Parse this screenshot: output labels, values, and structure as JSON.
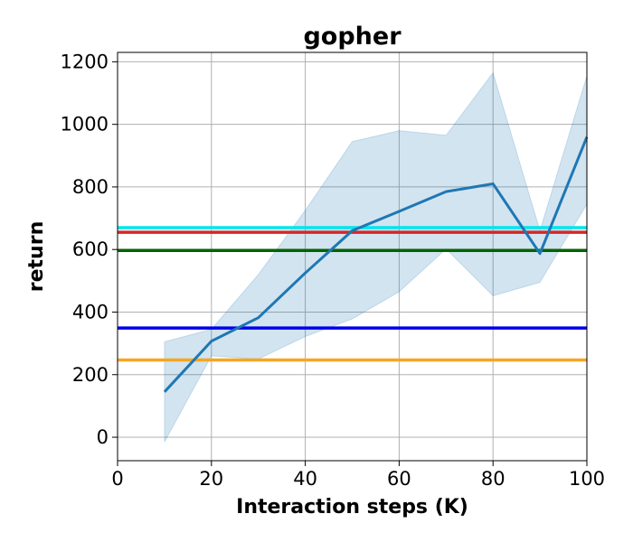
{
  "chart_data": {
    "type": "line",
    "title": "gopher",
    "xlabel": "Interaction steps (K)",
    "ylabel": "return",
    "xlim": [
      0,
      100
    ],
    "ylim": [
      -75,
      1230
    ],
    "x_ticks": [
      0,
      20,
      40,
      60,
      80,
      100
    ],
    "y_ticks": [
      0,
      200,
      400,
      600,
      800,
      1000,
      1200
    ],
    "grid": true,
    "x": [
      10,
      20,
      30,
      40,
      50,
      60,
      70,
      80,
      90,
      100
    ],
    "series": [
      {
        "values": [
          145,
          307,
          382,
          525,
          660,
          722,
          785,
          810,
          587,
          960
        ],
        "band_upper": [
          305,
          345,
          520,
          725,
          945,
          980,
          965,
          1165,
          660,
          1155
        ],
        "band_lower": [
          -15,
          260,
          250,
          322,
          378,
          465,
          602,
          452,
          495,
          745
        ],
        "color": "#1f77b4",
        "band_color": "#1f77b4"
      }
    ],
    "reference_lines": [
      {
        "value": 670,
        "color": "#00e5ee"
      },
      {
        "value": 655,
        "color": "#d62728"
      },
      {
        "value": 597,
        "color": "#006400"
      },
      {
        "value": 349,
        "color": "#0000ee"
      },
      {
        "value": 247,
        "color": "#f5a623"
      }
    ]
  }
}
